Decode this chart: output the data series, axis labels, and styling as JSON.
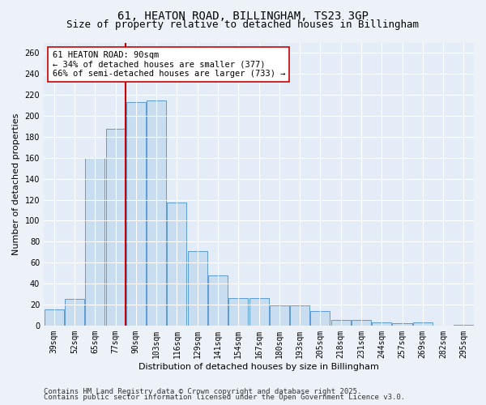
{
  "title_line1": "61, HEATON ROAD, BILLINGHAM, TS23 3GP",
  "title_line2": "Size of property relative to detached houses in Billingham",
  "xlabel": "Distribution of detached houses by size in Billingham",
  "ylabel": "Number of detached properties",
  "categories": [
    "39sqm",
    "52sqm",
    "65sqm",
    "77sqm",
    "90sqm",
    "103sqm",
    "116sqm",
    "129sqm",
    "141sqm",
    "154sqm",
    "167sqm",
    "180sqm",
    "193sqm",
    "205sqm",
    "218sqm",
    "231sqm",
    "244sqm",
    "257sqm",
    "269sqm",
    "282sqm",
    "295sqm"
  ],
  "values": [
    15,
    25,
    160,
    188,
    213,
    215,
    117,
    71,
    48,
    26,
    26,
    19,
    19,
    14,
    5,
    5,
    3,
    2,
    3,
    0,
    1
  ],
  "bar_color": "#c9ddf0",
  "bar_edge_color": "#5b9bd5",
  "property_size_label": "90sqm",
  "vline_color": "#cc0000",
  "annotation_text": "61 HEATON ROAD: 90sqm\n← 34% of detached houses are smaller (377)\n66% of semi-detached houses are larger (733) →",
  "annotation_box_color": "white",
  "annotation_box_edge_color": "#cc0000",
  "ylim": [
    0,
    270
  ],
  "yticks": [
    0,
    20,
    40,
    60,
    80,
    100,
    120,
    140,
    160,
    180,
    200,
    220,
    240,
    260
  ],
  "footer_line1": "Contains HM Land Registry data © Crown copyright and database right 2025.",
  "footer_line2": "Contains public sector information licensed under the Open Government Licence v3.0.",
  "background_color": "#edf2f9",
  "plot_bg_color": "#e4ecf7",
  "grid_color": "white",
  "title_fontsize": 10,
  "subtitle_fontsize": 9,
  "axis_label_fontsize": 8,
  "tick_fontsize": 7,
  "annotation_fontsize": 7.5,
  "footer_fontsize": 6.5
}
